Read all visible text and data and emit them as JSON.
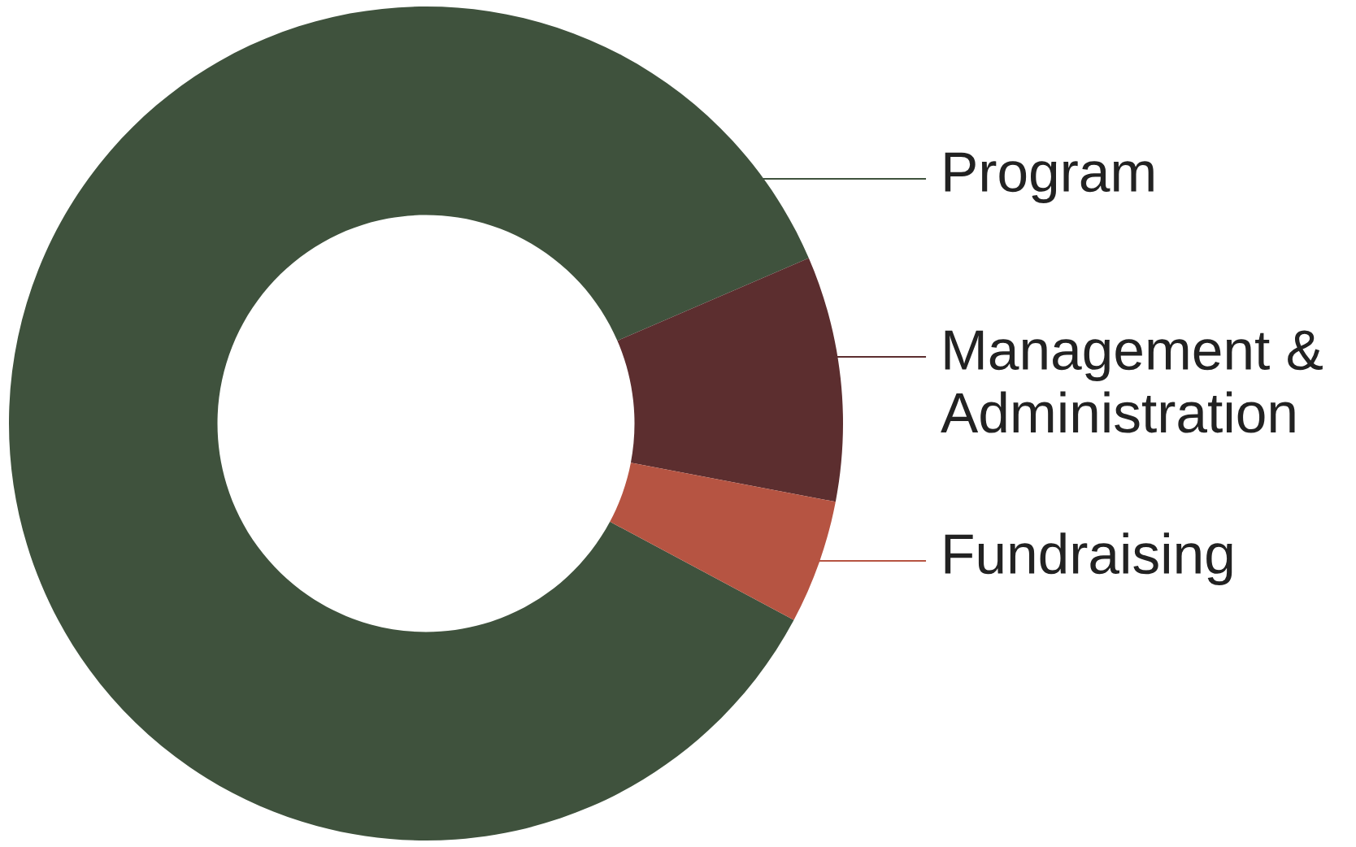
{
  "chart_data": {
    "type": "donut",
    "categories": [
      "Program",
      "Management & Administration",
      "Fundraising"
    ],
    "values": [
      85.7,
      9.5,
      4.8
    ],
    "colors": [
      "#3f523d",
      "#5c2e2f",
      "#b65442"
    ],
    "legend": false
  }
}
